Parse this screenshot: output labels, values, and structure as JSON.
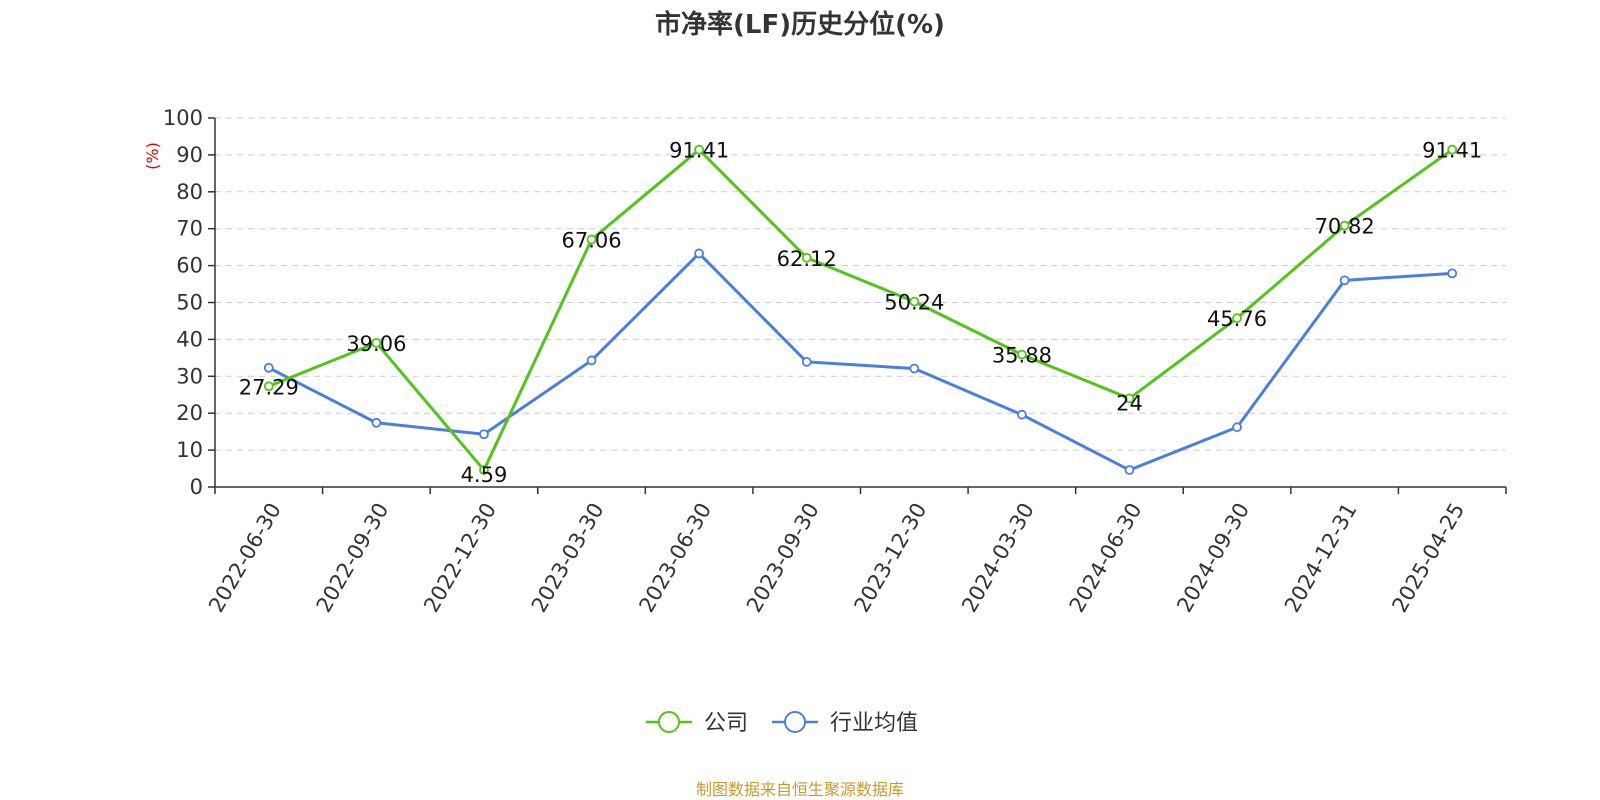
{
  "chart_data": {
    "type": "line",
    "title": "市净率(LF)历史分位(%)",
    "ylabel": "(%)",
    "xlabel": "",
    "ylim": [
      0,
      100
    ],
    "yticks": [
      0,
      10,
      20,
      30,
      40,
      50,
      60,
      70,
      80,
      90,
      100
    ],
    "grid": true,
    "legend_position": "bottom",
    "categories": [
      "2022-06-30",
      "2022-09-30",
      "2022-12-30",
      "2023-03-30",
      "2023-06-30",
      "2023-09-30",
      "2023-12-30",
      "2024-03-30",
      "2024-06-30",
      "2024-09-30",
      "2024-12-31",
      "2025-04-25"
    ],
    "series": [
      {
        "name": "公司",
        "color": "#52c41a",
        "values": [
          27.29,
          39.06,
          4.59,
          67.06,
          91.41,
          62.12,
          50.24,
          35.88,
          24,
          45.76,
          70.82,
          91.41
        ],
        "labels": [
          "27.29",
          "39.06",
          "4.59",
          "67.06",
          "91.41",
          "62.12",
          "50.24",
          "35.88",
          "24",
          "45.76",
          "70.82",
          "91.41"
        ]
      },
      {
        "name": "行业均值",
        "color": "#4a7fdc",
        "values": [
          32.3,
          17.4,
          14.3,
          34.3,
          63.3,
          33.9,
          32.1,
          19.6,
          4.6,
          16.2,
          56.0,
          57.9
        ]
      }
    ]
  },
  "source_note": "制图数据来自恒生聚源数据库",
  "colors": {
    "axis": "#333333",
    "grid": "#cccccc",
    "ylabel": "#e00000",
    "source": "#c79a2d"
  }
}
